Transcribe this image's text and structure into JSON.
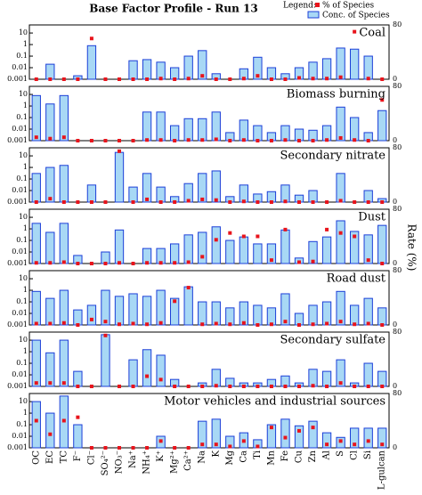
{
  "chart_data": {
    "type": "bar",
    "title": "Base Factor Profile - Run 13",
    "legend_title": "Legend:",
    "categories": [
      "OC",
      "EC",
      "TC",
      "F⁻",
      "Cl⁻",
      "SO₄²⁻",
      "NO₃⁻",
      "Na⁺",
      "NH₄⁺",
      "K⁺",
      "Mg²⁺",
      "Ca²⁺",
      "Na",
      "K",
      "Mg",
      "Ca",
      "Ti",
      "Mn",
      "Fe",
      "Cu",
      "Zn",
      "Al",
      "S",
      "Cl",
      "Si",
      "L-gulcan"
    ],
    "log_scale": true,
    "ylim": [
      0.001,
      50
    ],
    "yticks": [
      0.001,
      0.01,
      0.1,
      1,
      10
    ],
    "y2lim": [
      0,
      80
    ],
    "y2ticks": [
      0,
      80
    ],
    "y2label": "Rate (%)",
    "series": [
      {
        "name": "% of Species",
        "color": "#e8141c",
        "axis": "y2"
      },
      {
        "name": "Conc. of Species",
        "color": "#a8d8f5",
        "edge": "#1c3fd8"
      }
    ],
    "panels": [
      {
        "title": "Coal",
        "conc": [
          null,
          0.02,
          null,
          0.002,
          0.8,
          null,
          null,
          0.04,
          0.05,
          0.03,
          0.01,
          0.1,
          0.3,
          0.003,
          null,
          0.008,
          0.08,
          0.01,
          0.003,
          0.01,
          0.03,
          0.06,
          0.5,
          0.4,
          0.1,
          null
        ],
        "pct": [
          0,
          0,
          0,
          0,
          60,
          0,
          0,
          0,
          0,
          1,
          0,
          1,
          5,
          0,
          0,
          1,
          5,
          0,
          0,
          2,
          1,
          1,
          3,
          70,
          1,
          0
        ]
      },
      {
        "title": "Biomass burning",
        "conc": [
          8,
          1.5,
          8,
          null,
          null,
          null,
          null,
          null,
          0.3,
          0.3,
          0.02,
          0.08,
          0.08,
          0.3,
          0.005,
          0.06,
          0.02,
          0.005,
          0.02,
          0.01,
          0.008,
          0.02,
          0.8,
          0.1,
          0.005,
          0.4
        ],
        "pct": [
          5,
          3,
          5,
          0,
          0,
          0,
          0,
          0,
          1,
          1,
          0,
          1,
          1,
          2,
          0,
          1,
          0,
          0,
          1,
          0,
          0,
          1,
          4,
          1,
          0,
          60
        ]
      },
      {
        "title": "Secondary nitrate",
        "conc": [
          0.3,
          1,
          1.5,
          null,
          0.03,
          null,
          20,
          0.02,
          0.3,
          0.02,
          0.003,
          0.04,
          0.3,
          0.5,
          0.003,
          0.03,
          0.005,
          0.008,
          0.03,
          0.004,
          0.01,
          null,
          0.3,
          null,
          0.01,
          0.002
        ],
        "pct": [
          0,
          5,
          0,
          0,
          0,
          0,
          75,
          0,
          4,
          0,
          0,
          2,
          4,
          3,
          0,
          1,
          0,
          0,
          1,
          0,
          0,
          0,
          2,
          0,
          0,
          0
        ]
      },
      {
        "title": "Dust",
        "conc": [
          3,
          0.5,
          3,
          0.005,
          null,
          0.01,
          0.8,
          null,
          0.02,
          0.02,
          0.05,
          0.3,
          0.5,
          1.5,
          0.1,
          0.2,
          0.05,
          0.05,
          0.8,
          0.003,
          0.08,
          0.2,
          5,
          0.6,
          0.3,
          2
        ],
        "pct": [
          1,
          1,
          2,
          0,
          0,
          0,
          1,
          0,
          1,
          1,
          1,
          2,
          10,
          35,
          45,
          40,
          40,
          5,
          50,
          2,
          3,
          50,
          45,
          40,
          5,
          0
        ]
      },
      {
        "title": "Road dust",
        "conc": [
          0.8,
          0.2,
          1,
          0.02,
          0.05,
          1,
          0.3,
          0.5,
          0.3,
          1,
          0.2,
          2,
          0.1,
          0.1,
          0.03,
          0.1,
          0.05,
          0.03,
          0.5,
          0.01,
          0.05,
          0.1,
          0.8,
          0.05,
          0.2,
          0.03
        ],
        "pct": [
          2,
          2,
          3,
          0,
          8,
          5,
          1,
          2,
          1,
          3,
          35,
          55,
          1,
          2,
          1,
          3,
          0,
          1,
          5,
          0,
          1,
          2,
          5,
          1,
          2,
          0
        ]
      },
      {
        "title": "Secondary sulfate",
        "conc": [
          10,
          0.8,
          10,
          0.02,
          null,
          30,
          null,
          0.2,
          1.5,
          0.5,
          0.004,
          null,
          0.002,
          0.03,
          0.005,
          0.002,
          0.002,
          0.004,
          0.008,
          0.002,
          0.03,
          0.02,
          0.2,
          0.002,
          0.1,
          0.02
        ],
        "pct": [
          5,
          5,
          5,
          0,
          0,
          75,
          0,
          0,
          15,
          10,
          0,
          0,
          0,
          1,
          0,
          0,
          0,
          0,
          0,
          0,
          1,
          0,
          5,
          0,
          0,
          0
        ]
      },
      {
        "title": "Motor vehicles and industrial sources",
        "conc": [
          10,
          1,
          30,
          0.1,
          null,
          null,
          null,
          null,
          null,
          0.01,
          null,
          null,
          0.2,
          0.3,
          0.01,
          0.02,
          0.005,
          0.1,
          0.3,
          0.08,
          0.2,
          0.02,
          0.008,
          0.05,
          0.05,
          0.05
        ],
        "pct": [
          40,
          20,
          40,
          45,
          0,
          0,
          0,
          0,
          0,
          10,
          0,
          0,
          5,
          5,
          2,
          10,
          2,
          30,
          15,
          25,
          30,
          5,
          10,
          5,
          10,
          5
        ]
      }
    ]
  }
}
